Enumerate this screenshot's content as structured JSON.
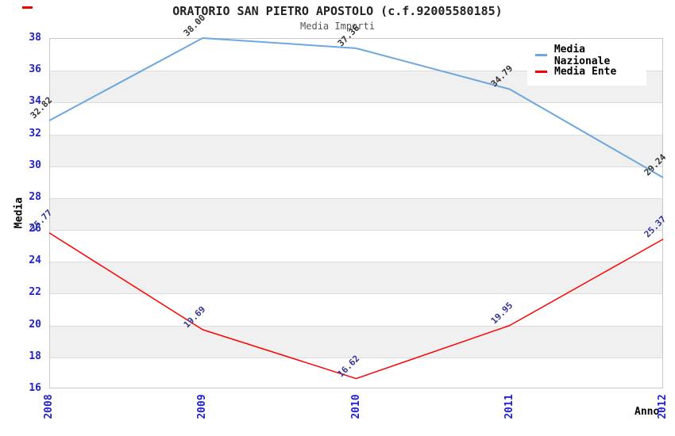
{
  "page": {
    "background": "#ffffff"
  },
  "chart_data": {
    "type": "line",
    "title": "ORATORIO SAN PIETRO APOSTOLO (c.f.92005580185)",
    "subtitle": "Media Importi",
    "xlabel": "Anno",
    "ylabel": "Media",
    "x": [
      "2008",
      "2009",
      "2010",
      "2011",
      "2012"
    ],
    "ylim": [
      16,
      38
    ],
    "ytick_step": 2,
    "yticks": [
      16,
      18,
      20,
      22,
      24,
      26,
      28,
      30,
      32,
      34,
      36,
      38
    ],
    "grid": "horizontal-bands",
    "legend_position": "top-right",
    "series": [
      {
        "name": "Media Nazionale",
        "color": "#6CA7E0",
        "label_color": "#333333",
        "line_width": 2,
        "values": [
          32.82,
          38.0,
          37.36,
          34.79,
          29.24
        ],
        "labels": [
          "32.82",
          "38.00",
          "37.36",
          "34.79",
          "29.24"
        ]
      },
      {
        "name": "Media Ente",
        "color": "#FF0000",
        "label_color": "#333399",
        "line_width": 1.5,
        "values": [
          25.77,
          19.69,
          16.62,
          19.95,
          25.37
        ],
        "labels": [
          "25.77",
          "19.69",
          "16.62",
          "19.95",
          "25.37"
        ]
      }
    ],
    "colors": {
      "tick": "#2222CC",
      "band_gray": "#F0F0F0",
      "gridline": "#DCDCDC",
      "border": "#C8C8C8",
      "title": "#222222",
      "subtitle": "#555555"
    }
  }
}
